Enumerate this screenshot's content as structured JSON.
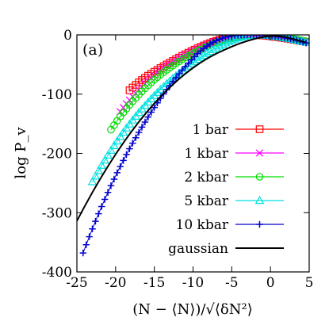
{
  "chart_data": {
    "type": "scatter",
    "panel_label": "(a)",
    "xlabel": "(N − ⟨N⟩)/√⟨δN²⟩",
    "ylabel": "log P_v",
    "xlim": [
      -25,
      5
    ],
    "ylim": [
      -400,
      0
    ],
    "xticks": [
      -25,
      -20,
      -15,
      -10,
      -5,
      0,
      5
    ],
    "yticks": [
      -400,
      -300,
      -200,
      -100,
      0
    ],
    "xtick_labels": [
      "-25",
      "-20",
      "-15",
      "-10",
      "-5",
      "0",
      "5"
    ],
    "ytick_labels": [
      "-400",
      "-300",
      "-200",
      "-100",
      "0"
    ],
    "grid": false,
    "legend_position": "bottom-right",
    "series": [
      {
        "name": "1 bar",
        "color": "#ff0000",
        "marker": "square",
        "x": [
          -18.2,
          -17.8,
          -17.4,
          -17.0,
          -16.6,
          -16.2,
          -15.8,
          -15.4,
          -15.0,
          -14.6,
          -14.2,
          -13.8,
          -13.4,
          -13.0,
          -12.6,
          -12.2,
          -11.8,
          -11.4,
          -11.0,
          -10.6,
          -10.2,
          -9.8,
          -9.4,
          -9.0,
          -8.6,
          -8.2,
          -7.8,
          -7.4,
          -7.0,
          -6.6,
          -6.2,
          -5.8,
          -5.4,
          -5.0,
          -4.6,
          -4.2,
          -3.8,
          -3.4,
          -3.0,
          -2.6,
          -2.2,
          -1.8,
          -1.4,
          -1.0,
          -0.6,
          -0.2,
          0.2,
          0.6,
          1.0,
          1.4,
          1.8,
          2.2,
          2.6,
          3.0,
          3.4,
          3.8,
          4.2,
          4.6
        ],
        "y": [
          -93.5,
          -88.9,
          -84.3,
          -80.1,
          -76.2,
          -72.5,
          -69.0,
          -65.6,
          -62.3,
          -59.1,
          -56.0,
          -52.9,
          -49.9,
          -46.9,
          -44.0,
          -41.1,
          -38.3,
          -35.5,
          -32.8,
          -30.1,
          -27.5,
          -25.0,
          -22.6,
          -20.2,
          -18.0,
          -15.8,
          -13.8,
          -11.8,
          -10.0,
          -8.4,
          -6.8,
          -5.4,
          -4.2,
          -3.1,
          -2.2,
          -1.4,
          -0.8,
          -0.4,
          -0.1,
          0.0,
          -0.1,
          -0.3,
          -0.6,
          -1.0,
          -1.4,
          -2.0,
          -2.6,
          -3.3,
          -4.0,
          -4.8,
          -5.6,
          -6.4,
          -7.3,
          -8.2,
          -9.1,
          -10.0,
          -10.9,
          -11.8
        ]
      },
      {
        "name": "1 kbar",
        "color": "#ff00ff",
        "marker": "x",
        "x": [
          -19.4,
          -19.0,
          -18.6,
          -18.2,
          -17.8,
          -17.4,
          -17.0,
          -16.6,
          -16.2,
          -15.8,
          -15.4,
          -15.0,
          -14.6,
          -14.2,
          -13.8,
          -13.4,
          -13.0,
          -12.6,
          -12.2,
          -11.8,
          -11.4,
          -11.0,
          -10.6,
          -10.2,
          -9.8,
          -9.4,
          -9.0,
          -8.6,
          -8.2,
          -7.8,
          -7.4,
          -7.0,
          -6.6,
          -6.2,
          -5.8,
          -5.4,
          -5.0,
          -4.6,
          -4.2,
          -3.8,
          -3.4,
          -3.0,
          -2.6,
          -2.2,
          -1.8,
          -1.4,
          -1.0,
          -0.6,
          -0.2,
          0.2,
          0.6,
          1.0,
          1.4,
          1.8,
          2.2,
          2.6,
          3.0,
          3.4,
          3.8,
          4.2,
          4.6
        ],
        "y": [
          -129.6,
          -122.8,
          -116.3,
          -110.1,
          -104.2,
          -98.5,
          -93.0,
          -87.7,
          -82.6,
          -77.7,
          -73.0,
          -68.5,
          -64.2,
          -60.1,
          -56.2,
          -52.5,
          -49.0,
          -45.7,
          -42.5,
          -39.5,
          -36.6,
          -33.9,
          -31.3,
          -28.8,
          -26.3,
          -24.0,
          -21.7,
          -19.4,
          -17.3,
          -15.2,
          -13.2,
          -11.4,
          -9.7,
          -8.1,
          -6.6,
          -5.3,
          -4.1,
          -3.1,
          -2.2,
          -1.5,
          -0.9,
          -0.5,
          -0.2,
          0.0,
          0.0,
          -0.2,
          -0.5,
          -0.9,
          -1.3,
          -1.8,
          -2.4,
          -3.0,
          -3.7,
          -4.5,
          -5.3,
          -6.2,
          -7.1,
          -8.1,
          -9.1,
          -10.1,
          -11.2
        ]
      },
      {
        "name": "2 kbar",
        "color": "#00dd00",
        "marker": "circle",
        "x": [
          -20.6,
          -20.2,
          -19.8,
          -19.4,
          -19.0,
          -18.6,
          -18.2,
          -17.8,
          -17.4,
          -17.0,
          -16.6,
          -16.2,
          -15.8,
          -15.4,
          -15.0,
          -14.6,
          -14.2,
          -13.8,
          -13.4,
          -13.0,
          -12.6,
          -12.2,
          -11.8,
          -11.4,
          -11.0,
          -10.6,
          -10.2,
          -9.8,
          -9.4,
          -9.0,
          -8.6,
          -8.2,
          -7.8,
          -7.4,
          -7.0,
          -6.6,
          -6.2,
          -5.8,
          -5.4,
          -5.0,
          -4.6,
          -4.2,
          -3.8,
          -3.4,
          -3.0,
          -2.6,
          -2.2,
          -1.8,
          -1.4,
          -1.0,
          -0.6,
          -0.2,
          0.2,
          0.6,
          1.0,
          1.4,
          1.8,
          2.2,
          2.6,
          3.0,
          3.4,
          3.8,
          4.2,
          4.6
        ],
        "y": [
          -160.0,
          -152.3,
          -145.0,
          -137.9,
          -131.1,
          -124.6,
          -118.3,
          -112.2,
          -106.4,
          -100.8,
          -95.4,
          -90.2,
          -85.2,
          -80.4,
          -75.8,
          -71.4,
          -67.1,
          -63.0,
          -59.1,
          -55.3,
          -51.7,
          -48.2,
          -44.8,
          -41.5,
          -38.4,
          -35.4,
          -32.5,
          -29.7,
          -27.0,
          -24.4,
          -21.9,
          -19.5,
          -17.3,
          -15.2,
          -13.2,
          -11.3,
          -9.6,
          -8.0,
          -6.5,
          -5.2,
          -4.0,
          -3.0,
          -2.1,
          -1.4,
          -0.8,
          -0.4,
          -0.1,
          0.0,
          0.0,
          -0.2,
          -0.5,
          -0.9,
          -1.4,
          -2.0,
          -2.7,
          -3.4,
          -4.2,
          -5.0,
          -5.9,
          -6.8,
          -7.8,
          -8.8,
          -9.9,
          -11.0
        ]
      },
      {
        "name": "5 kbar",
        "color": "#00e0e0",
        "marker": "triangle",
        "x": [
          -23.0,
          -22.6,
          -22.2,
          -21.8,
          -21.4,
          -21.0,
          -20.6,
          -20.2,
          -19.8,
          -19.4,
          -19.0,
          -18.6,
          -18.2,
          -17.8,
          -17.4,
          -17.0,
          -16.6,
          -16.2,
          -15.8,
          -15.4,
          -15.0,
          -14.6,
          -14.2,
          -13.8,
          -13.4,
          -13.0,
          -12.6,
          -12.2,
          -11.8,
          -11.4,
          -11.0,
          -10.6,
          -10.2,
          -9.8,
          -9.4,
          -9.0,
          -8.6,
          -8.2,
          -7.8,
          -7.4,
          -7.0,
          -6.6,
          -6.2,
          -5.8,
          -5.4,
          -5.0,
          -4.6,
          -4.2,
          -3.8,
          -3.4,
          -3.0,
          -2.6,
          -2.2,
          -1.8,
          -1.4,
          -1.0,
          -0.6,
          -0.2,
          0.2,
          0.6,
          1.0,
          1.4,
          1.8,
          2.2,
          2.6,
          3.0,
          3.4,
          3.8,
          4.2,
          4.6
        ],
        "y": [
          -248.0,
          -238.5,
          -229.3,
          -220.3,
          -211.6,
          -203.2,
          -195.0,
          -187.0,
          -179.3,
          -171.8,
          -164.5,
          -157.4,
          -150.6,
          -143.9,
          -137.5,
          -131.2,
          -125.1,
          -119.2,
          -113.5,
          -107.9,
          -102.5,
          -97.3,
          -92.2,
          -87.3,
          -82.5,
          -77.8,
          -73.3,
          -68.9,
          -64.6,
          -60.5,
          -56.5,
          -52.6,
          -48.8,
          -45.1,
          -41.5,
          -38.0,
          -34.6,
          -31.3,
          -28.1,
          -25.0,
          -22.0,
          -19.1,
          -16.4,
          -13.8,
          -11.4,
          -9.2,
          -7.2,
          -5.4,
          -3.9,
          -2.6,
          -1.6,
          -0.8,
          -0.3,
          0.0,
          0.0,
          -0.2,
          -0.6,
          -1.1,
          -1.7,
          -2.4,
          -3.2,
          -4.1,
          -5.0,
          -6.0,
          -7.0,
          -8.1,
          -9.2,
          -10.3,
          -11.4,
          -12.5
        ]
      },
      {
        "name": "10 kbar",
        "color": "#0000cc",
        "marker": "plus",
        "x": [
          -24.2,
          -23.8,
          -23.4,
          -23.0,
          -22.6,
          -22.2,
          -21.8,
          -21.4,
          -21.0,
          -20.6,
          -20.2,
          -19.8,
          -19.4,
          -19.0,
          -18.6,
          -18.2,
          -17.8,
          -17.4,
          -17.0,
          -16.6,
          -16.2,
          -15.8,
          -15.4,
          -15.0,
          -14.6,
          -14.2,
          -13.8,
          -13.4,
          -13.0,
          -12.6,
          -12.2,
          -11.8,
          -11.4,
          -11.0,
          -10.6,
          -10.2,
          -9.8,
          -9.4,
          -9.0,
          -8.6,
          -8.2,
          -7.8,
          -7.4,
          -7.0,
          -6.6,
          -6.2,
          -5.8,
          -5.4,
          -5.0,
          -4.6,
          -4.2,
          -3.8,
          -3.4,
          -3.0,
          -2.6,
          -2.2,
          -1.8,
          -1.4,
          -1.0,
          -0.6,
          -0.2,
          0.2,
          0.6,
          1.0,
          1.4,
          1.8,
          2.2,
          2.6,
          3.0,
          3.4,
          3.8,
          4.2,
          4.6
        ],
        "y": [
          -368.0,
          -354.1,
          -340.6,
          -327.4,
          -314.5,
          -301.9,
          -289.6,
          -277.6,
          -265.9,
          -254.5,
          -243.4,
          -232.6,
          -222.1,
          -211.9,
          -201.9,
          -192.2,
          -182.7,
          -173.5,
          -164.5,
          -155.7,
          -147.1,
          -138.7,
          -130.5,
          -122.5,
          -114.7,
          -107.1,
          -99.7,
          -92.5,
          -85.5,
          -78.7,
          -72.1,
          -65.7,
          -59.5,
          -53.5,
          -47.7,
          -42.1,
          -36.8,
          -31.8,
          -27.1,
          -22.8,
          -18.9,
          -15.4,
          -12.3,
          -9.6,
          -7.3,
          -5.4,
          -3.9,
          -2.7,
          -1.8,
          -1.1,
          -0.6,
          -0.3,
          -0.1,
          0.0,
          0.0,
          0.0,
          -0.1,
          -0.2,
          -0.4,
          -0.7,
          -1.1,
          -1.6,
          -2.2,
          -2.9,
          -3.7,
          -4.6,
          -5.6,
          -6.7,
          -7.9,
          -9.2,
          -10.6,
          -12.1,
          -13.7
        ]
      },
      {
        "name": "gaussian",
        "color": "#000000",
        "marker": "line",
        "x": [
          -25.0,
          -24.0,
          -23.0,
          -22.0,
          -21.0,
          -20.0,
          -19.0,
          -18.0,
          -17.0,
          -16.0,
          -15.0,
          -14.0,
          -13.0,
          -12.0,
          -11.0,
          -10.0,
          -9.0,
          -8.0,
          -7.0,
          -6.0,
          -5.0,
          -4.0,
          -3.0,
          -2.0,
          -1.0,
          0.0,
          1.0,
          2.0,
          3.0,
          4.0,
          4.6
        ],
        "y": [
          -314.0,
          -289.4,
          -265.8,
          -243.3,
          -221.9,
          -201.5,
          -182.2,
          -164.0,
          -146.8,
          -130.7,
          -115.6,
          -101.6,
          -88.6,
          -76.6,
          -65.6,
          -55.6,
          -46.6,
          -38.6,
          -31.6,
          -25.6,
          -19.8,
          -14.6,
          -10.2,
          -6.6,
          -3.6,
          -1.6,
          -1.9,
          -3.9,
          -7.1,
          -10.6,
          -12.6
        ]
      }
    ]
  }
}
